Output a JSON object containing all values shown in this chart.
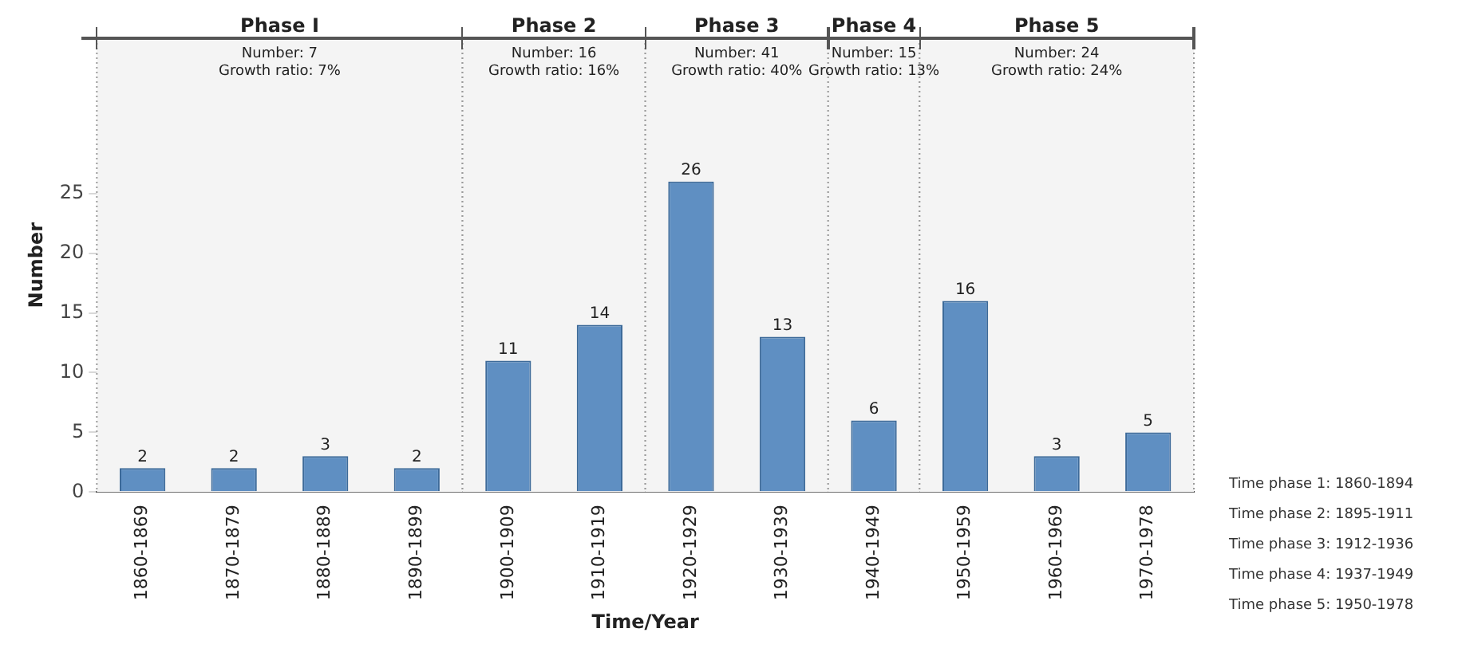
{
  "chart_data": {
    "type": "bar",
    "xlabel": "Time/Year",
    "ylabel": "Number",
    "categories": [
      "1860-1869",
      "1870-1879",
      "1880-1889",
      "1890-1899",
      "1900-1909",
      "1910-1919",
      "1920-1929",
      "1930-1939",
      "1940-1949",
      "1950-1959",
      "1960-1969",
      "1970-1978"
    ],
    "values": [
      2,
      2,
      3,
      2,
      11,
      14,
      26,
      13,
      6,
      16,
      3,
      5
    ],
    "color": "#5f8fc2",
    "data_labels": true,
    "ylim": [
      0,
      38
    ],
    "yticks": [
      0,
      5,
      10,
      15,
      20,
      25
    ],
    "grid": "y",
    "legend": false,
    "bands": [
      {
        "axis": "x",
        "from": "1860-1869",
        "to": "1890-1899",
        "label": "Phase I",
        "color": "#f4f4f4"
      },
      {
        "axis": "x",
        "from": "1900-1909",
        "to": "1910-1919",
        "label": "Phase 2",
        "color": "#f4f4f4"
      },
      {
        "axis": "x",
        "from": "1920-1929",
        "to": "1930-1939",
        "label": "Phase 3",
        "color": "#f4f4f4"
      },
      {
        "axis": "x",
        "from": "1940-1949",
        "to": "1940-1949",
        "label": "Phase 4",
        "color": "#f4f4f4"
      },
      {
        "axis": "x",
        "from": "1950-1959",
        "to": "1970-1978",
        "label": "Phase 5",
        "color": "#f4f4f4"
      }
    ],
    "annotations": [
      "Number: 7",
      "Growth ratio: 7%",
      "Number: 16",
      "Growth ratio: 16%",
      "Number: 41",
      "Growth ratio: 40%",
      "Number: 15",
      "Growth ratio: 13%",
      "Number: 24",
      "Growth ratio: 24%",
      "Time phase 1: 1860-1894",
      "Time phase 2: 1895-1911",
      "Time phase 3: 1912-1936",
      "Time phase 4: 1937-1949",
      "Time phase 5: 1950-1978"
    ]
  }
}
